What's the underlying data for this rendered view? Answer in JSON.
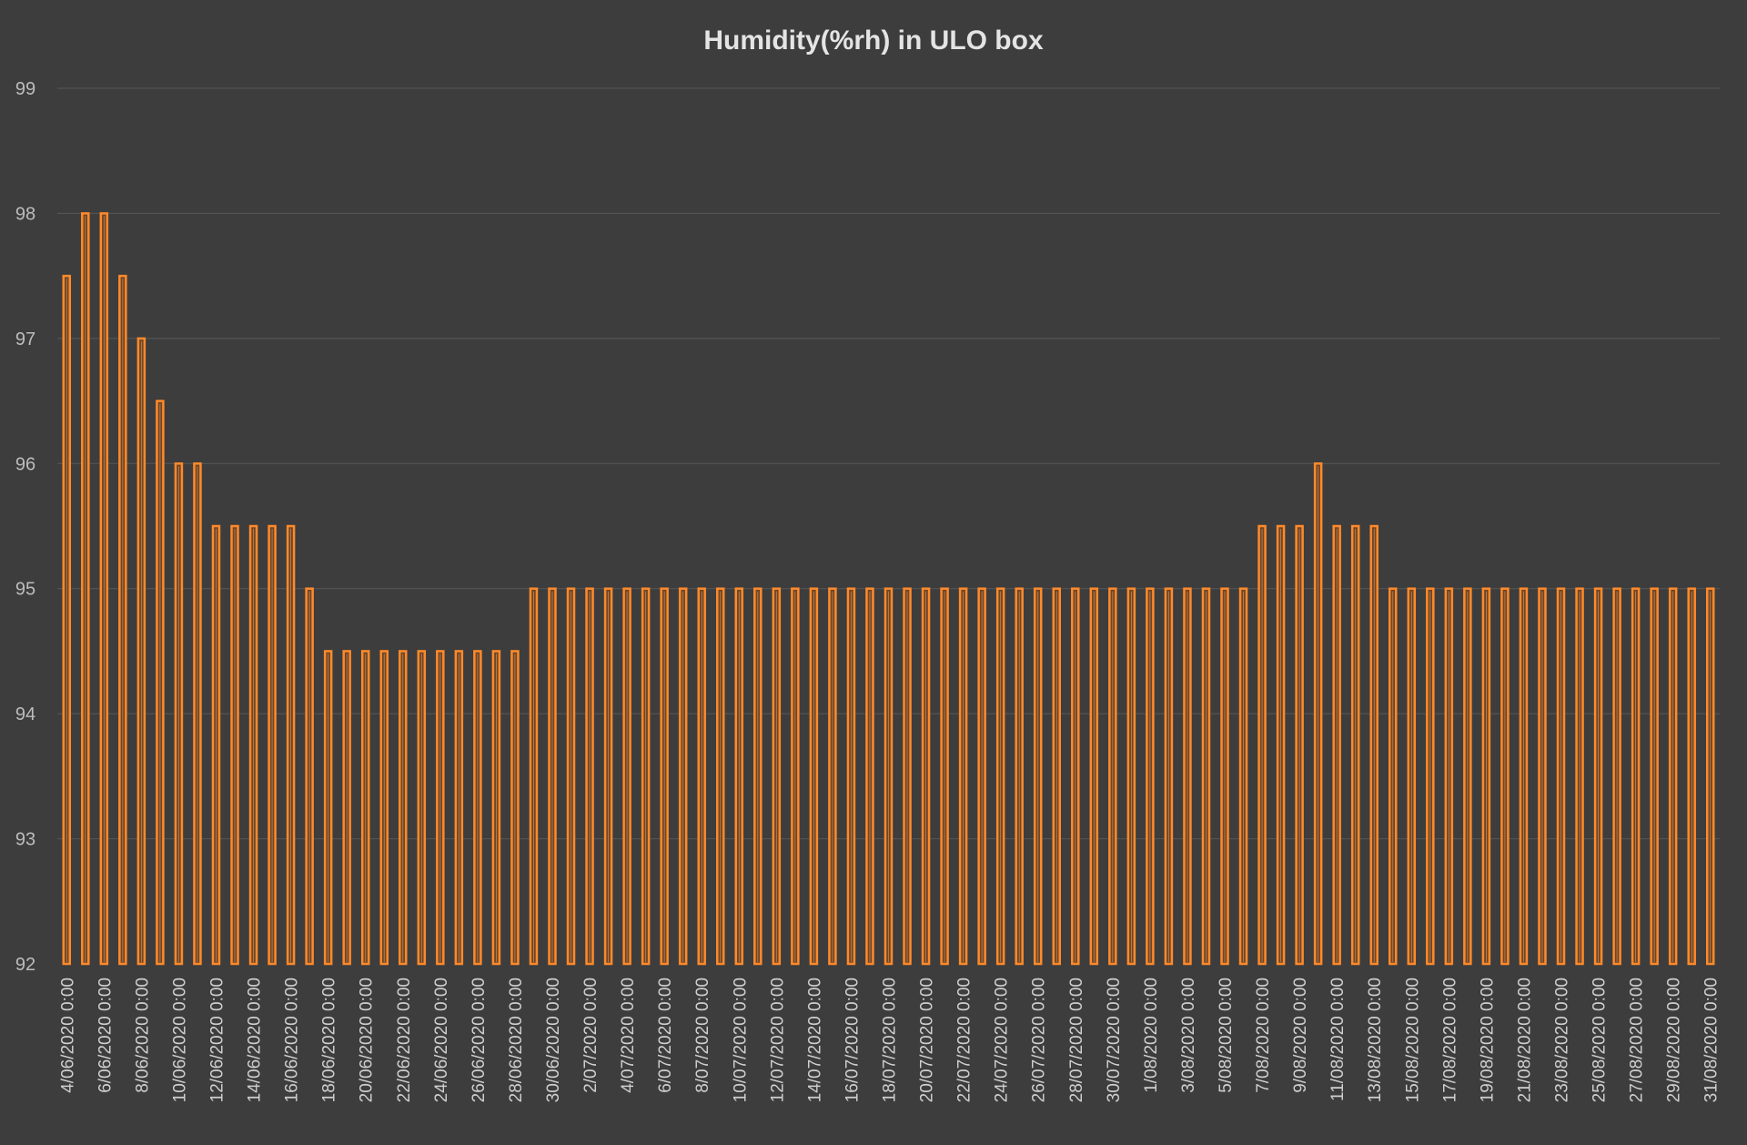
{
  "chart_data": {
    "type": "bar",
    "title": "Humidity(%rh) in ULO box",
    "xlabel": "",
    "ylabel": "",
    "ylim": [
      92,
      99
    ],
    "yticks": [
      92,
      93,
      94,
      95,
      96,
      97,
      98,
      99
    ],
    "grid": true,
    "legend": "none",
    "colors": {
      "background": "#3d3d3d",
      "bar_fill": "#6e4628",
      "bar_stroke": "#ff8a2a",
      "title": "#e4e4e4",
      "grid": "#585858"
    },
    "categories": [
      "4/06/2020 0:00",
      "5/06/2020 0:00",
      "6/06/2020 0:00",
      "7/06/2020 0:00",
      "8/06/2020 0:00",
      "9/06/2020 0:00",
      "10/06/2020 0:00",
      "11/06/2020 0:00",
      "12/06/2020 0:00",
      "13/06/2020 0:00",
      "14/06/2020 0:00",
      "15/06/2020 0:00",
      "16/06/2020 0:00",
      "17/06/2020 0:00",
      "18/06/2020 0:00",
      "19/06/2020 0:00",
      "20/06/2020 0:00",
      "21/06/2020 0:00",
      "22/06/2020 0:00",
      "23/06/2020 0:00",
      "24/06/2020 0:00",
      "25/06/2020 0:00",
      "26/06/2020 0:00",
      "27/06/2020 0:00",
      "28/06/2020 0:00",
      "29/06/2020 0:00",
      "30/06/2020 0:00",
      "1/07/2020 0:00",
      "2/07/2020 0:00",
      "3/07/2020 0:00",
      "4/07/2020 0:00",
      "5/07/2020 0:00",
      "6/07/2020 0:00",
      "7/07/2020 0:00",
      "8/07/2020 0:00",
      "9/07/2020 0:00",
      "10/07/2020 0:00",
      "11/07/2020 0:00",
      "12/07/2020 0:00",
      "13/07/2020 0:00",
      "14/07/2020 0:00",
      "15/07/2020 0:00",
      "16/07/2020 0:00",
      "17/07/2020 0:00",
      "18/07/2020 0:00",
      "19/07/2020 0:00",
      "20/07/2020 0:00",
      "21/07/2020 0:00",
      "22/07/2020 0:00",
      "23/07/2020 0:00",
      "24/07/2020 0:00",
      "25/07/2020 0:00",
      "26/07/2020 0:00",
      "27/07/2020 0:00",
      "28/07/2020 0:00",
      "29/07/2020 0:00",
      "30/07/2020 0:00",
      "31/07/2020 0:00",
      "1/08/2020 0:00",
      "2/08/2020 0:00",
      "3/08/2020 0:00",
      "4/08/2020 0:00",
      "5/08/2020 0:00",
      "6/08/2020 0:00",
      "7/08/2020 0:00",
      "8/08/2020 0:00",
      "9/08/2020 0:00",
      "10/08/2020 0:00",
      "11/08/2020 0:00",
      "12/08/2020 0:00",
      "13/08/2020 0:00",
      "14/08/2020 0:00",
      "15/08/2020 0:00",
      "16/08/2020 0:00",
      "17/08/2020 0:00",
      "18/08/2020 0:00",
      "19/08/2020 0:00",
      "20/08/2020 0:00",
      "21/08/2020 0:00",
      "22/08/2020 0:00",
      "23/08/2020 0:00",
      "24/08/2020 0:00",
      "25/08/2020 0:00",
      "26/08/2020 0:00",
      "27/08/2020 0:00",
      "28/08/2020 0:00",
      "29/08/2020 0:00",
      "30/08/2020 0:00",
      "31/08/2020 0:00"
    ],
    "xtick_labels": [
      "4/06/2020 0:00",
      "6/06/2020 0:00",
      "8/06/2020 0:00",
      "10/06/2020 0:00",
      "12/06/2020 0:00",
      "14/06/2020 0:00",
      "16/06/2020 0:00",
      "18/06/2020 0:00",
      "20/06/2020 0:00",
      "22/06/2020 0:00",
      "24/06/2020 0:00",
      "26/06/2020 0:00",
      "28/06/2020 0:00",
      "30/06/2020 0:00",
      "2/07/2020 0:00",
      "4/07/2020 0:00",
      "6/07/2020 0:00",
      "8/07/2020 0:00",
      "10/07/2020 0:00",
      "12/07/2020 0:00",
      "14/07/2020 0:00",
      "16/07/2020 0:00",
      "18/07/2020 0:00",
      "20/07/2020 0:00",
      "22/07/2020 0:00",
      "24/07/2020 0:00",
      "26/07/2020 0:00",
      "28/07/2020 0:00",
      "30/07/2020 0:00",
      "1/08/2020 0:00",
      "3/08/2020 0:00",
      "5/08/2020 0:00",
      "7/08/2020 0:00",
      "9/08/2020 0:00",
      "11/08/2020 0:00",
      "13/08/2020 0:00",
      "15/08/2020 0:00",
      "17/08/2020 0:00",
      "19/08/2020 0:00",
      "21/08/2020 0:00",
      "23/08/2020 0:00",
      "25/08/2020 0:00",
      "27/08/2020 0:00",
      "29/08/2020 0:00",
      "31/08/2020 0:00"
    ],
    "values": [
      97.5,
      98,
      98,
      97.5,
      97,
      96.5,
      96,
      96,
      95.5,
      95.5,
      95.5,
      95.5,
      95.5,
      95,
      94.5,
      94.5,
      94.5,
      94.5,
      94.5,
      94.5,
      94.5,
      94.5,
      94.5,
      94.5,
      94.5,
      95,
      95,
      95,
      95,
      95,
      95,
      95,
      95,
      95,
      95,
      95,
      95,
      95,
      95,
      95,
      95,
      95,
      95,
      95,
      95,
      95,
      95,
      95,
      95,
      95,
      95,
      95,
      95,
      95,
      95,
      95,
      95,
      95,
      95,
      95,
      95,
      95,
      95,
      95,
      95.5,
      95.5,
      95.5,
      96,
      95.5,
      95.5,
      95.5,
      95,
      95,
      95,
      95,
      95,
      95,
      95,
      95,
      95,
      95,
      95,
      95,
      95,
      95,
      95,
      95,
      95,
      95
    ]
  }
}
